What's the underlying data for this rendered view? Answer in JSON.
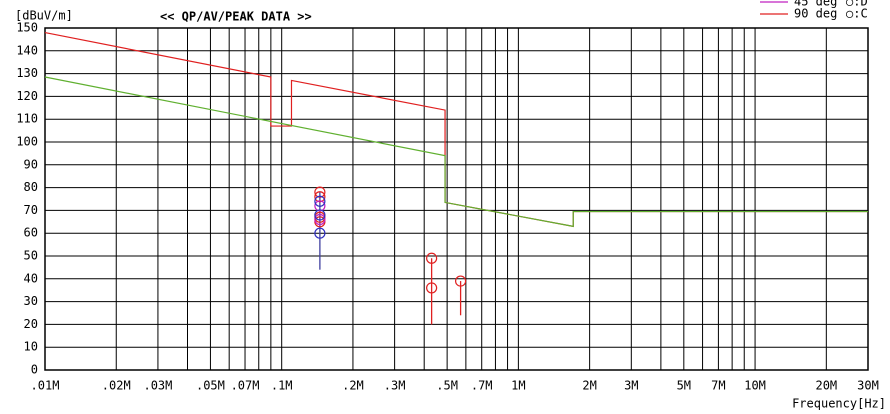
{
  "chart_data": {
    "type": "line",
    "title": "<< QP/AV/PEAK DATA >>",
    "ylabel": "[dBuV/m]",
    "xlabel": "Frequency[Hz]",
    "xscale": "log",
    "xlim": [
      0.01,
      30
    ],
    "ylim": [
      0,
      150
    ],
    "grid": true,
    "xticks": [
      {
        "value": 0.01,
        "label": ".01M"
      },
      {
        "value": 0.02,
        "label": ".02M"
      },
      {
        "value": 0.03,
        "label": ".03M"
      },
      {
        "value": 0.05,
        "label": ".05M"
      },
      {
        "value": 0.07,
        "label": ".07M"
      },
      {
        "value": 0.1,
        "label": ".1M"
      },
      {
        "value": 0.2,
        "label": ".2M"
      },
      {
        "value": 0.3,
        "label": ".3M"
      },
      {
        "value": 0.5,
        "label": ".5M"
      },
      {
        "value": 0.7,
        "label": ".7M"
      },
      {
        "value": 1,
        "label": "1M"
      },
      {
        "value": 2,
        "label": "2M"
      },
      {
        "value": 3,
        "label": "3M"
      },
      {
        "value": 5,
        "label": "5M"
      },
      {
        "value": 7,
        "label": "7M"
      },
      {
        "value": 10,
        "label": "10M"
      },
      {
        "value": 20,
        "label": "20M"
      },
      {
        "value": 30,
        "label": "30M"
      }
    ],
    "xminorticks": [
      0.04,
      0.06,
      0.08,
      0.09,
      0.4,
      0.6,
      0.8,
      0.9,
      4,
      6,
      8,
      9
    ],
    "yticks": [
      0,
      10,
      20,
      30,
      40,
      50,
      60,
      70,
      80,
      90,
      100,
      110,
      120,
      130,
      140,
      150
    ],
    "series": [
      {
        "color": "#e02020",
        "x": [
          0.01,
          0.09,
          0.09,
          0.11,
          0.11,
          0.49,
          0.49,
          1.705,
          1.705,
          30
        ],
        "values": [
          148,
          128.5,
          107,
          107,
          127,
          114,
          73.5,
          63,
          69.5,
          69.5
        ]
      },
      {
        "color": "#60b030",
        "x": [
          0.01,
          0.49,
          0.49,
          1.705,
          1.705,
          30
        ],
        "values": [
          128.5,
          94,
          73.5,
          63,
          69.5,
          69.5
        ]
      }
    ],
    "stems": {
      "x": [
        0.145,
        0.43,
        0.57
      ],
      "low": [
        44,
        20,
        24
      ],
      "high": [
        78,
        49,
        39
      ],
      "colors": [
        "#4040a0",
        "#e02020",
        "#e02020"
      ]
    },
    "markers": [
      {
        "color": "#e02020",
        "x": [
          0.145,
          0.145,
          0.145,
          0.145,
          0.43,
          0.43,
          0.57
        ],
        "values": [
          78,
          76,
          67,
          65,
          49,
          36,
          39
        ]
      },
      {
        "color": "#c020c0",
        "x": [
          0.145,
          0.145
        ],
        "values": [
          72,
          66
        ]
      },
      {
        "color": "#3030c0",
        "x": [
          0.145,
          0.145,
          0.145
        ],
        "values": [
          74,
          68,
          60
        ]
      }
    ],
    "legend": [
      {
        "label": "45 deg",
        "marker": "○:D",
        "color": "#c020c0",
        "marker_color": "#c020c0"
      },
      {
        "label": "90 deg",
        "marker": "○:C",
        "color": "#e02020",
        "marker_color": "#3030c0"
      }
    ]
  }
}
